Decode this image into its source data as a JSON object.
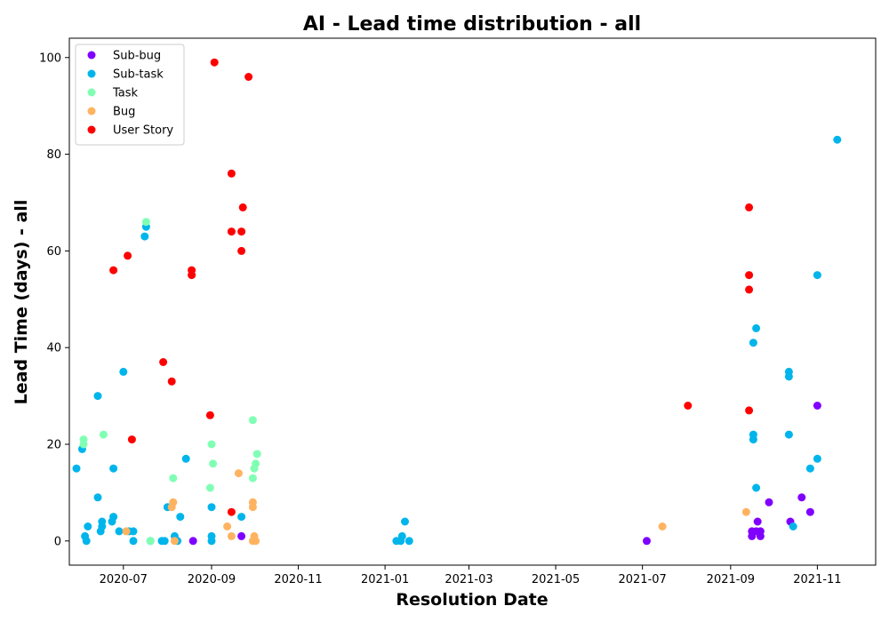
{
  "chart_data": {
    "type": "scatter",
    "title": "AI - Lead time distribution - all",
    "xlabel": "Resolution Date",
    "ylabel": "Lead Time (days) - all",
    "xlim": [
      "2020-05-24",
      "2021-12-12"
    ],
    "ylim": [
      -5,
      104
    ],
    "x_ticks": [
      "2020-07-01",
      "2020-09-01",
      "2020-11-01",
      "2021-01-01",
      "2021-03-01",
      "2021-05-01",
      "2021-07-01",
      "2021-09-01",
      "2021-11-01"
    ],
    "x_tick_labels": [
      "2020-07",
      "2020-09",
      "2020-11",
      "2021-01",
      "2021-03",
      "2021-05",
      "2021-07",
      "2021-09",
      "2021-11"
    ],
    "y_ticks": [
      0,
      20,
      40,
      60,
      80,
      100
    ],
    "grid": false,
    "legend_position": "upper-left",
    "series": [
      {
        "name": "Sub-bug",
        "color": "#8000ff",
        "points": [
          [
            "2020-08-19",
            0
          ],
          [
            "2020-09-22",
            1
          ],
          [
            "2021-07-04",
            0
          ],
          [
            "2021-09-16",
            1
          ],
          [
            "2021-09-16",
            2
          ],
          [
            "2021-09-19",
            2
          ],
          [
            "2021-09-22",
            1
          ],
          [
            "2021-09-22",
            2
          ],
          [
            "2021-09-20",
            4
          ],
          [
            "2021-09-28",
            8
          ],
          [
            "2021-10-13",
            4
          ],
          [
            "2021-10-21",
            9
          ],
          [
            "2021-10-27",
            6
          ],
          [
            "2021-11-01",
            28
          ]
        ]
      },
      {
        "name": "Sub-task",
        "color": "#00b5eb",
        "points": [
          [
            "2020-05-29",
            15
          ],
          [
            "2020-06-02",
            19
          ],
          [
            "2020-06-04",
            1
          ],
          [
            "2020-06-05",
            0
          ],
          [
            "2020-06-06",
            3
          ],
          [
            "2020-06-13",
            30
          ],
          [
            "2020-06-13",
            9
          ],
          [
            "2020-06-15",
            2
          ],
          [
            "2020-06-16",
            3
          ],
          [
            "2020-06-16",
            4
          ],
          [
            "2020-06-23",
            4
          ],
          [
            "2020-06-24",
            5
          ],
          [
            "2020-06-24",
            15
          ],
          [
            "2020-06-28",
            2
          ],
          [
            "2020-07-01",
            35
          ],
          [
            "2020-07-05",
            2
          ],
          [
            "2020-07-08",
            0
          ],
          [
            "2020-07-08",
            2
          ],
          [
            "2020-07-16",
            63
          ],
          [
            "2020-07-17",
            65
          ],
          [
            "2020-07-20",
            0
          ],
          [
            "2020-07-28",
            0
          ],
          [
            "2020-07-30",
            0
          ],
          [
            "2020-08-01",
            7
          ],
          [
            "2020-08-06",
            1
          ],
          [
            "2020-08-08",
            0
          ],
          [
            "2020-08-10",
            5
          ],
          [
            "2020-08-14",
            17
          ],
          [
            "2020-09-01",
            0
          ],
          [
            "2020-09-01",
            1
          ],
          [
            "2020-09-01",
            7
          ],
          [
            "2020-09-22",
            5
          ],
          [
            "2021-01-09",
            0
          ],
          [
            "2021-01-12",
            0
          ],
          [
            "2021-01-13",
            1
          ],
          [
            "2021-01-15",
            4
          ],
          [
            "2021-01-18",
            0
          ],
          [
            "2021-09-17",
            21
          ],
          [
            "2021-09-17",
            22
          ],
          [
            "2021-09-17",
            41
          ],
          [
            "2021-09-19",
            44
          ],
          [
            "2021-09-19",
            11
          ],
          [
            "2021-10-12",
            34
          ],
          [
            "2021-10-12",
            35
          ],
          [
            "2021-10-12",
            22
          ],
          [
            "2021-10-15",
            3
          ],
          [
            "2021-10-27",
            15
          ],
          [
            "2021-11-01",
            17
          ],
          [
            "2021-11-01",
            55
          ],
          [
            "2021-11-15",
            83
          ]
        ]
      },
      {
        "name": "Task",
        "color": "#80ffb4",
        "points": [
          [
            "2020-06-03",
            20
          ],
          [
            "2020-06-03",
            21
          ],
          [
            "2020-06-17",
            22
          ],
          [
            "2020-07-17",
            66
          ],
          [
            "2020-07-20",
            0
          ],
          [
            "2020-08-05",
            13
          ],
          [
            "2020-08-31",
            11
          ],
          [
            "2020-09-01",
            20
          ],
          [
            "2020-09-02",
            16
          ],
          [
            "2020-09-30",
            13
          ],
          [
            "2020-09-30",
            25
          ],
          [
            "2020-10-01",
            15
          ],
          [
            "2020-10-02",
            16
          ],
          [
            "2020-10-03",
            18
          ]
        ]
      },
      {
        "name": "Bug",
        "color": "#ffb360",
        "points": [
          [
            "2020-07-03",
            2
          ],
          [
            "2020-08-04",
            7
          ],
          [
            "2020-08-05",
            8
          ],
          [
            "2020-08-06",
            0
          ],
          [
            "2020-09-12",
            3
          ],
          [
            "2020-09-15",
            1
          ],
          [
            "2020-09-20",
            14
          ],
          [
            "2020-09-30",
            7
          ],
          [
            "2020-09-30",
            8
          ],
          [
            "2020-09-30",
            0
          ],
          [
            "2020-10-01",
            1
          ],
          [
            "2020-10-02",
            0
          ],
          [
            "2021-09-12",
            6
          ],
          [
            "2021-07-15",
            3
          ]
        ]
      },
      {
        "name": "User Story",
        "color": "#ff0000",
        "points": [
          [
            "2020-06-24",
            56
          ],
          [
            "2020-07-04",
            59
          ],
          [
            "2020-07-07",
            21
          ],
          [
            "2020-07-29",
            37
          ],
          [
            "2020-08-04",
            33
          ],
          [
            "2020-08-18",
            55
          ],
          [
            "2020-08-18",
            56
          ],
          [
            "2020-08-31",
            26
          ],
          [
            "2020-09-03",
            99
          ],
          [
            "2020-09-15",
            76
          ],
          [
            "2020-09-15",
            64
          ],
          [
            "2020-09-15",
            6
          ],
          [
            "2020-09-22",
            60
          ],
          [
            "2020-09-22",
            64
          ],
          [
            "2020-09-23",
            69
          ],
          [
            "2020-09-27",
            96
          ],
          [
            "2021-08-02",
            28
          ],
          [
            "2021-09-14",
            55
          ],
          [
            "2021-09-14",
            52
          ],
          [
            "2021-09-14",
            27
          ],
          [
            "2021-09-14",
            69
          ]
        ]
      }
    ]
  }
}
